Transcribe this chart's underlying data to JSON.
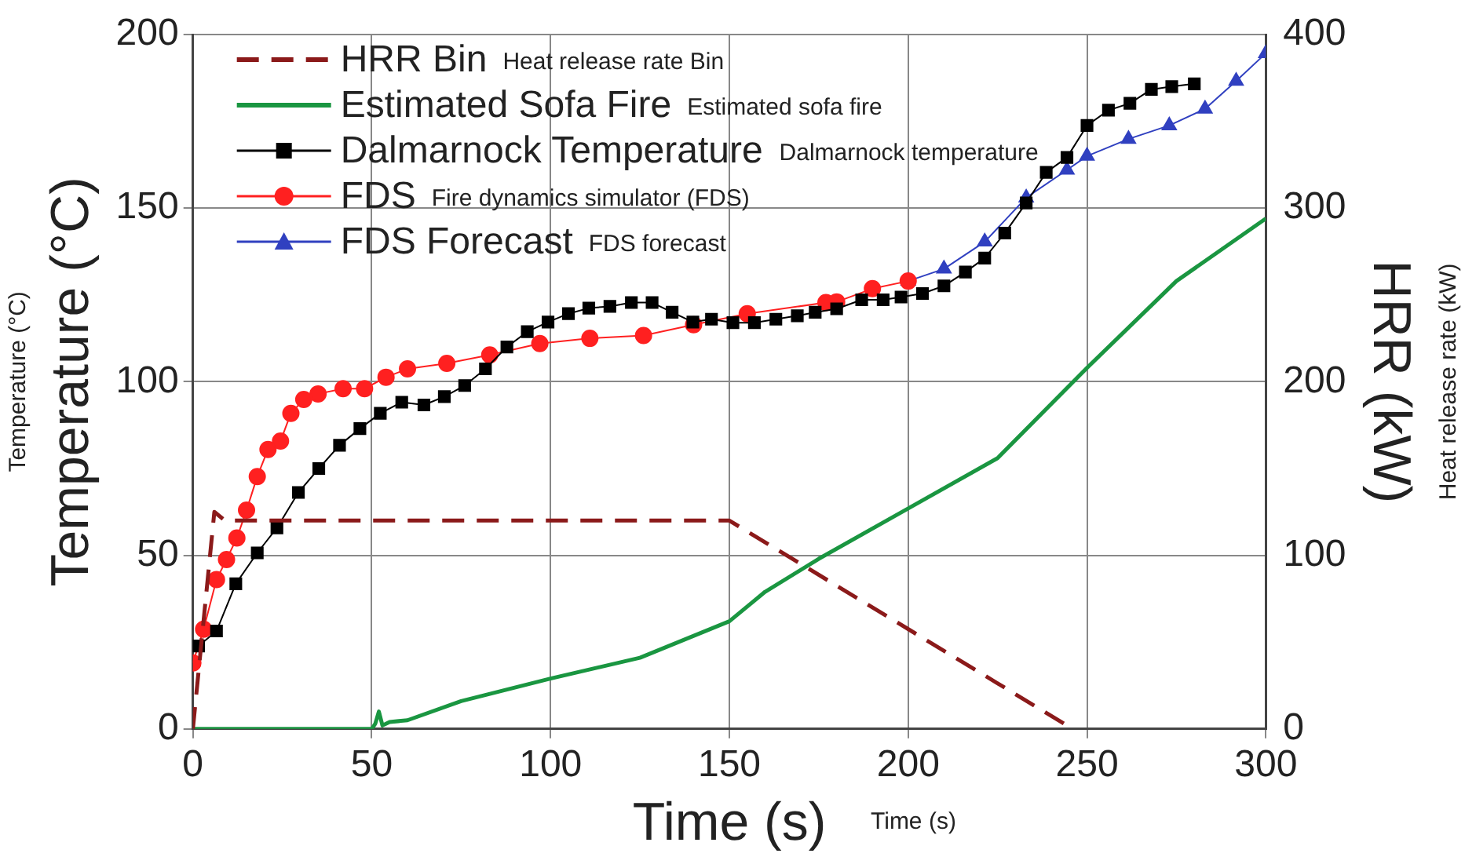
{
  "chart_data": {
    "type": "line",
    "xlabel": "Time (s)",
    "ylabel": "Temperature (°C)",
    "y2label": "HRR (kW)",
    "xlim": [
      0,
      300
    ],
    "xticks": [
      0,
      50,
      100,
      150,
      200,
      250,
      300
    ],
    "ylim": [
      0,
      200
    ],
    "yticks": [
      0,
      50,
      100,
      150,
      200
    ],
    "y2lim": [
      0,
      400
    ],
    "y2ticks": [
      0,
      100,
      200,
      300,
      400
    ],
    "grid": true,
    "legend": "top left",
    "annotations": [
      "Heat release rate Bin",
      "Estimated sofa fire",
      "Dalmarnock temperature",
      "Fire dynamics simulator (FDS)",
      "FDS forecast",
      "Temperature (°C)",
      "Heat release rate (kW)",
      "Time (s)"
    ],
    "series": [
      {
        "name": "HRR Bin",
        "color": "#8b1a1a",
        "axis": "y2",
        "marker": "none",
        "line_style": "dashed",
        "x": [
          0,
          6,
          9,
          150,
          246
        ],
        "values": [
          0,
          125,
          120,
          120,
          0
        ]
      },
      {
        "name": "Estimated Sofa Fire",
        "color": "#1a9641",
        "axis": "y2",
        "marker": "none",
        "line_style": "solid",
        "x": [
          0,
          50,
          51,
          52,
          53,
          55,
          60,
          75,
          100,
          125,
          150,
          160,
          175,
          200,
          225,
          250,
          275,
          300
        ],
        "values": [
          0,
          0,
          3,
          10,
          2,
          4,
          5,
          16,
          29,
          41,
          62,
          79,
          98,
          127,
          156,
          208,
          258,
          294
        ]
      },
      {
        "name": "Dalmarnock Temperature",
        "color": "#000000",
        "axis": "y",
        "marker": "square",
        "line_style": "solid",
        "x": [
          1.6,
          6.6,
          12,
          18,
          23.5,
          29.5,
          35.2,
          41,
          46.7,
          52.4,
          58.4,
          64.6,
          70.3,
          76,
          81.8,
          87.8,
          93.5,
          99.3,
          105,
          110.7,
          116.6,
          122.6,
          128.4,
          134,
          139.8,
          145,
          151,
          157,
          163,
          169,
          174,
          180,
          187,
          193,
          198,
          204,
          210,
          216,
          221.4,
          227,
          233,
          238.6,
          244.4,
          250,
          256,
          262,
          268,
          273.7,
          280
        ],
        "values": [
          23.9,
          28.2,
          41.8,
          50.7,
          57.9,
          68.1,
          75,
          81.7,
          86.5,
          90.9,
          94.1,
          93.3,
          95.7,
          98.9,
          103.7,
          110,
          114.4,
          117.2,
          119.6,
          121.2,
          121.7,
          122.8,
          122.8,
          120,
          117.2,
          118,
          117,
          117,
          118,
          119,
          120,
          121,
          123.6,
          123.6,
          124.4,
          125.4,
          127.6,
          131.6,
          135.6,
          142.8,
          151.5,
          160.3,
          164.6,
          173.8,
          178.2,
          180.2,
          184.2,
          185,
          185.8
        ]
      },
      {
        "name": "FDS",
        "color": "#ff2020",
        "axis": "y",
        "marker": "circle",
        "line_style": "solid",
        "x": [
          0,
          3,
          6.6,
          9.4,
          12.3,
          15,
          18,
          21,
          24.5,
          27.4,
          31,
          35,
          42,
          48,
          54,
          60,
          71,
          83,
          97,
          111,
          126,
          140,
          155,
          177,
          180,
          190,
          200
        ],
        "values": [
          19,
          28.7,
          43,
          48.8,
          55,
          63,
          72.7,
          80.5,
          82.9,
          90.9,
          94.9,
          96.5,
          98,
          98,
          101.3,
          103.7,
          105.3,
          107.7,
          111,
          112.5,
          113.3,
          116.4,
          119.6,
          122.8,
          123,
          126.8,
          129
        ]
      },
      {
        "name": "FDS Forecast",
        "color": "#3040c0",
        "axis": "y",
        "marker": "triangle",
        "line_style": "solid",
        "x": [
          200,
          210,
          221.4,
          233,
          244.4,
          250,
          261.6,
          273,
          283,
          291.7,
          300
        ],
        "values": [
          129,
          132.5,
          140.3,
          153,
          161,
          165,
          169.9,
          173.8,
          178.6,
          186.6,
          194.6
        ]
      }
    ]
  }
}
